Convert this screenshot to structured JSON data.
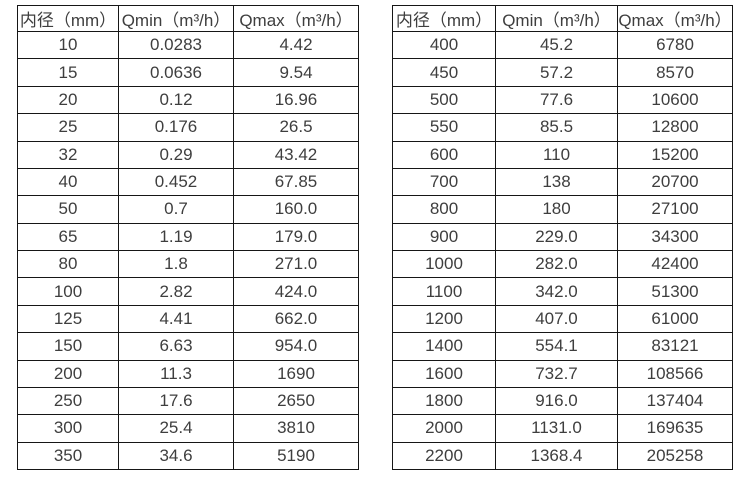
{
  "page": {
    "background_color": "#ffffff",
    "border_color": "#161616",
    "text_color": "#3e3e3e"
  },
  "tables": [
    {
      "name": "flow-rate-table-small-diameters",
      "headers": [
        "内径（mm）",
        "Qmin（m³/h）",
        "Qmax（m³/h）"
      ],
      "rows": [
        [
          "10",
          "0.0283",
          "4.42"
        ],
        [
          "15",
          "0.0636",
          "9.54"
        ],
        [
          "20",
          "0.12",
          "16.96"
        ],
        [
          "25",
          "0.176",
          "26.5"
        ],
        [
          "32",
          "0.29",
          "43.42"
        ],
        [
          "40",
          "0.452",
          "67.85"
        ],
        [
          "50",
          "0.7",
          "160.0"
        ],
        [
          "65",
          "1.19",
          "179.0"
        ],
        [
          "80",
          "1.8",
          "271.0"
        ],
        [
          "100",
          "2.82",
          "424.0"
        ],
        [
          "125",
          "4.41",
          "662.0"
        ],
        [
          "150",
          "6.63",
          "954.0"
        ],
        [
          "200",
          "11.3",
          "1690"
        ],
        [
          "250",
          "17.6",
          "2650"
        ],
        [
          "300",
          "25.4",
          "3810"
        ],
        [
          "350",
          "34.6",
          "5190"
        ]
      ]
    },
    {
      "name": "flow-rate-table-large-diameters",
      "headers": [
        "内径（mm）",
        "Qmin（m³/h）",
        "Qmax（m³/h）"
      ],
      "rows": [
        [
          "400",
          "45.2",
          "6780"
        ],
        [
          "450",
          "57.2",
          "8570"
        ],
        [
          "500",
          "77.6",
          "10600"
        ],
        [
          "550",
          "85.5",
          "12800"
        ],
        [
          "600",
          "110",
          "15200"
        ],
        [
          "700",
          "138",
          "20700"
        ],
        [
          "800",
          "180",
          "27100"
        ],
        [
          "900",
          "229.0",
          "34300"
        ],
        [
          "1000",
          "282.0",
          "42400"
        ],
        [
          "1100",
          "342.0",
          "51300"
        ],
        [
          "1200",
          "407.0",
          "61000"
        ],
        [
          "1400",
          "554.1",
          "83121"
        ],
        [
          "1600",
          "732.7",
          "108566"
        ],
        [
          "1800",
          "916.0",
          "137404"
        ],
        [
          "2000",
          "1131.0",
          "169635"
        ],
        [
          "2200",
          "1368.4",
          "205258"
        ]
      ]
    }
  ]
}
